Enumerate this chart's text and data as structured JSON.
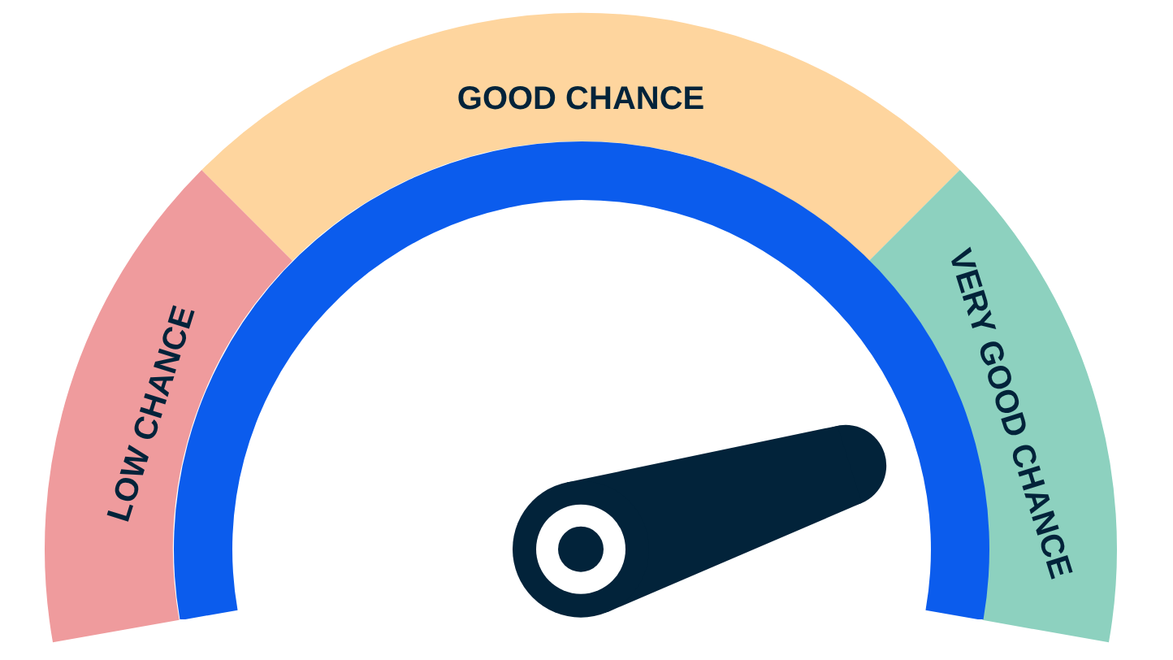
{
  "chart_data": {
    "type": "donut",
    "categories": [
      "LOW CHANCE",
      "GOOD CHANCE",
      "VERY GOOD CHANCE"
    ],
    "values": [
      27.5,
      45,
      27.5
    ],
    "colors": [
      "#ef9b9d",
      "#fed59e",
      "#8dd1bf"
    ],
    "needle": "VERY GOOD CHANCE"
  }
}
